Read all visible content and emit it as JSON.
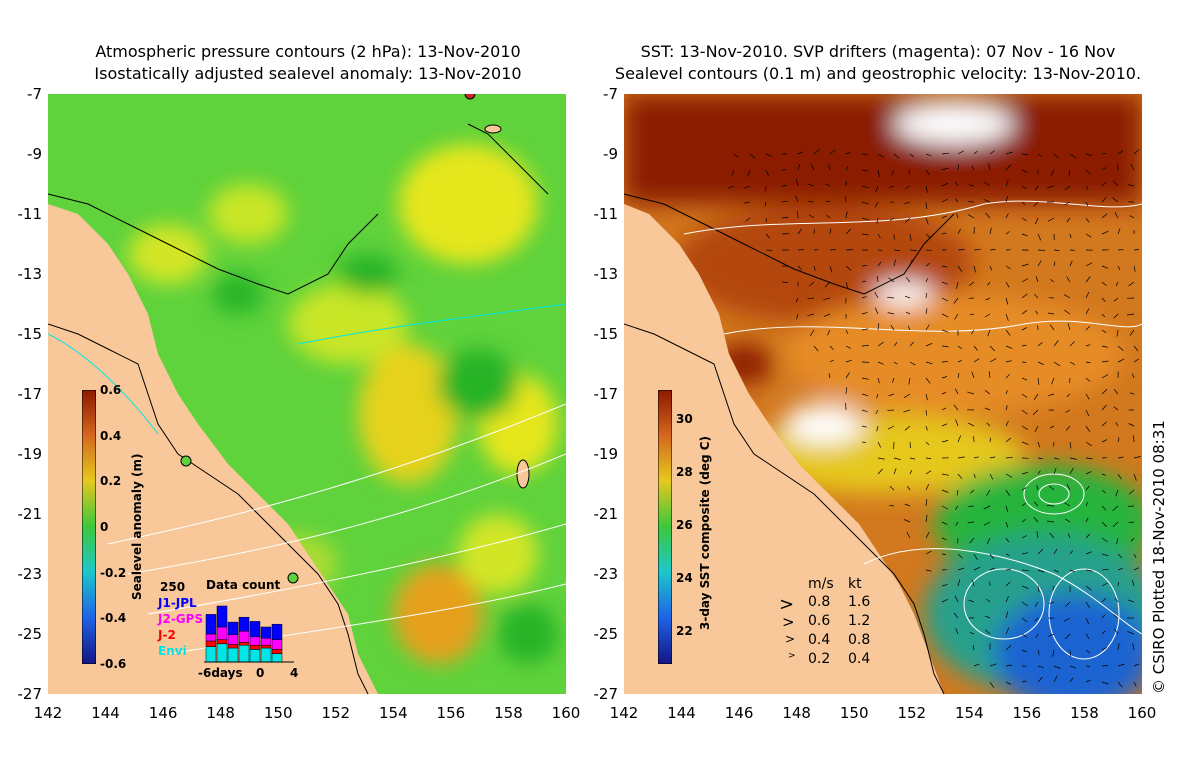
{
  "left_panel": {
    "title_line1": "Atmospheric pressure contours (2 hPa): 13-Nov-2010",
    "title_line2": "Isostatically adjusted sealevel anomaly: 13-Nov-2010",
    "colorbar": {
      "label": "Sealevel anomaly (m)",
      "ticks": [
        "0.6",
        "0.4",
        "0.2",
        "0",
        "-0.2",
        "-0.4",
        "-0.6"
      ]
    },
    "data_count": {
      "title": "Data count",
      "max_label": "250",
      "series": [
        {
          "name": "J1-JPL",
          "color": "#0000ff"
        },
        {
          "name": "J2-GPS",
          "color": "#ff00ff"
        },
        {
          "name": "J-2",
          "color": "#ff0000"
        },
        {
          "name": "Envi",
          "color": "#00e5e5"
        }
      ],
      "x_labels": [
        "-6days",
        "0",
        "4"
      ]
    }
  },
  "right_panel": {
    "title_line1": "SST: 13-Nov-2010. SVP drifters (magenta): 07 Nov - 16 Nov",
    "title_line2": "Sealevel contours (0.1 m) and geostrophic velocity: 13-Nov-2010.",
    "colorbar": {
      "label": "3-day SST composite (deg C)",
      "ticks": [
        "30",
        "28",
        "26",
        "24",
        "22"
      ]
    },
    "velocity_legend": {
      "header_ms": "m/s",
      "header_kt": "kt",
      "rows": [
        {
          "ms": "0.8",
          "kt": "1.6"
        },
        {
          "ms": "0.6",
          "kt": "1.2"
        },
        {
          "ms": "0.4",
          "kt": "0.8"
        },
        {
          "ms": "0.2",
          "kt": "0.4"
        }
      ]
    }
  },
  "axes": {
    "y_ticks": [
      "-7",
      "-9",
      "-11",
      "-13",
      "-15",
      "-17",
      "-19",
      "-21",
      "-23",
      "-25",
      "-27"
    ],
    "x_ticks": [
      "142",
      "144",
      "146",
      "148",
      "150",
      "152",
      "154",
      "156",
      "158",
      "160"
    ]
  },
  "credit": "© CSIRO Plotted 18-Nov-2010 08:31",
  "colors": {
    "land": "#f9c89a",
    "sea_green": "#3cc83c",
    "sea_yellow": "#e6e61e",
    "sst_dark_red": "#8b1a00",
    "sst_orange": "#d2781e",
    "sst_blue": "#1e64d2"
  }
}
